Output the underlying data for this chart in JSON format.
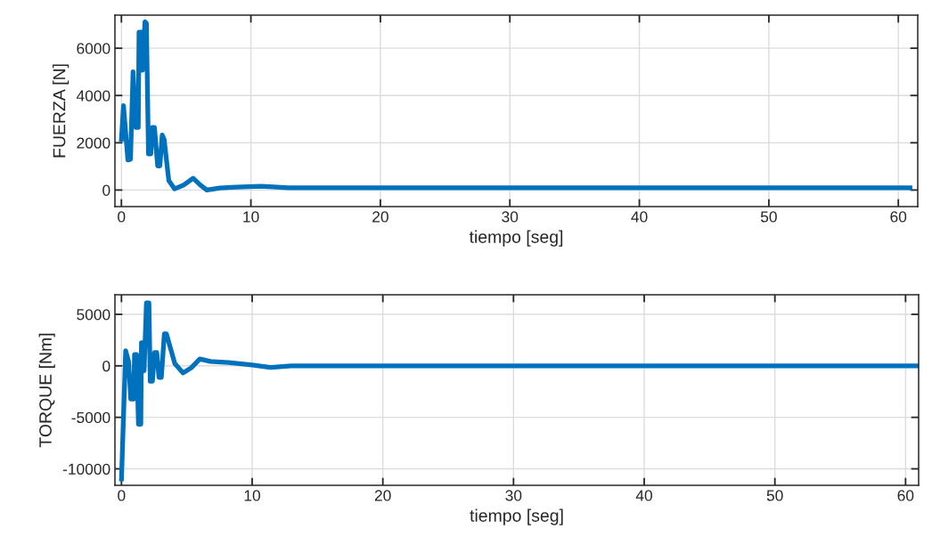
{
  "chart_data": [
    {
      "type": "line",
      "xlabel": "tiempo [seg]",
      "ylabel": "FUERZA [N]",
      "xlim": [
        -0.5,
        61.5
      ],
      "ylim": [
        -700,
        7400
      ],
      "xticks": [
        0,
        10,
        20,
        30,
        40,
        50,
        60
      ],
      "yticks": [
        0,
        2000,
        4000,
        6000
      ],
      "grid": true,
      "line_style": "solid",
      "series": [
        {
          "color": "#0072bd",
          "x": [
            0,
            0.16,
            0.5,
            0.7,
            0.9,
            1.12,
            1.3,
            1.36,
            1.59,
            1.63,
            1.82,
            1.93,
            2.09,
            2.27,
            2.39,
            2.55,
            2.8,
            2.97,
            3.15,
            3.3,
            3.66,
            4.1,
            4.8,
            5.54,
            6.1,
            6.6,
            7.6,
            8.9,
            10.8,
            12.9,
            20,
            30,
            40,
            50,
            60.9
          ],
          "values": [
            2140,
            3570,
            1270,
            1300,
            5000,
            2650,
            2650,
            6680,
            6680,
            5070,
            7120,
            7050,
            1530,
            1530,
            2650,
            2650,
            1020,
            1020,
            2330,
            2140,
            400,
            50,
            210,
            500,
            210,
            0,
            90,
            120,
            160,
            100,
            100,
            100,
            100,
            100,
            100
          ]
        }
      ]
    },
    {
      "type": "line",
      "xlabel": "tiempo [seg]",
      "ylabel": "TORQUE [Nm]",
      "xlim": [
        -0.5,
        61
      ],
      "ylim": [
        -11600,
        6900
      ],
      "xticks": [
        0,
        10,
        20,
        30,
        40,
        50,
        60
      ],
      "yticks": [
        {
          "value": -10000,
          "label": "-10000"
        },
        {
          "value": -5000,
          "label": "-5000"
        },
        0,
        5000
      ],
      "grid": true,
      "line_style": "solid",
      "series": [
        {
          "color": "#0072bd",
          "x": [
            0,
            0.32,
            0.55,
            0.71,
            0.93,
            1.0,
            1.16,
            1.3,
            1.48,
            1.53,
            1.64,
            1.73,
            1.91,
            2.1,
            2.2,
            2.37,
            2.53,
            2.7,
            2.87,
            3.05,
            3.28,
            3.44,
            4.08,
            4.71,
            5.33,
            6.0,
            6.8,
            8.2,
            10,
            11.4,
            13,
            20,
            30,
            40,
            50,
            61
          ],
          "values": [
            -10980,
            1470,
            370,
            -3220,
            -3220,
            1090,
            1090,
            -5660,
            -5660,
            2240,
            2240,
            -490,
            6120,
            6120,
            -1490,
            -1490,
            1290,
            1290,
            -1120,
            -1120,
            3100,
            3100,
            230,
            -690,
            -200,
            660,
            430,
            320,
            90,
            -150,
            0,
            0,
            0,
            0,
            0,
            0
          ]
        }
      ]
    }
  ]
}
